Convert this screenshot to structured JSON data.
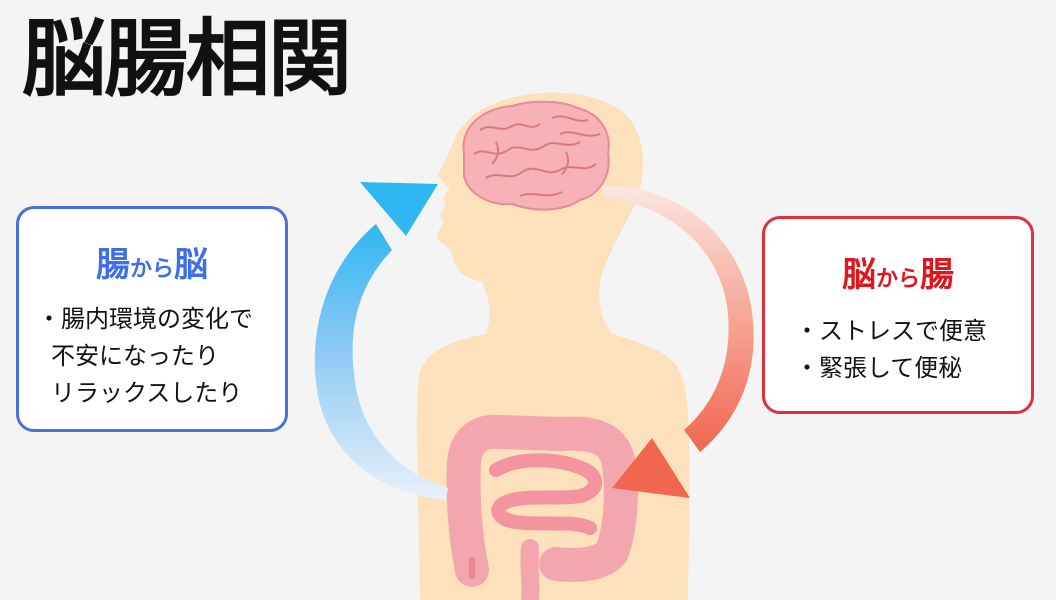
{
  "title": "脳腸相関",
  "left_box": {
    "title_part1": "腸",
    "title_part2": "から",
    "title_part3": "脳",
    "lines": [
      "・腸内環境の変化で",
      "不安になったり",
      "リラックスしたり"
    ]
  },
  "right_box": {
    "title_part1": "脳",
    "title_part2": "から",
    "title_part3": "腸",
    "lines": [
      "・ストレスで便意",
      "・緊張して便秘"
    ]
  },
  "colors": {
    "left_accent": "#3e6fe8",
    "right_accent": "#e0161e",
    "body": "#fde0bc",
    "organ": "#f4a6ae"
  }
}
